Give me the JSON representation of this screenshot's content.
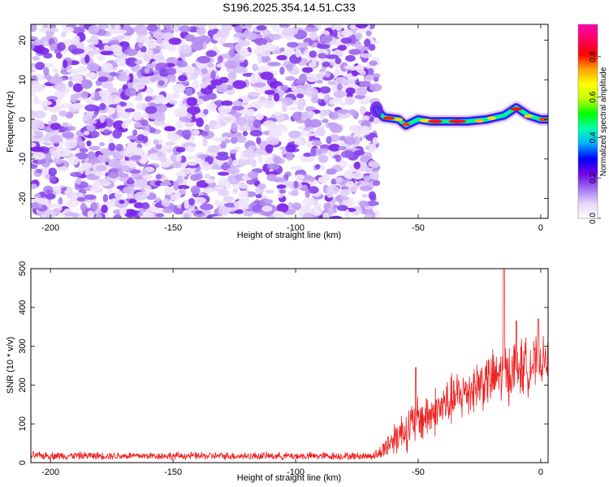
{
  "title": "S196.2025.354.14.51.C33",
  "chart_data": [
    {
      "type": "heatmap",
      "name": "spectrogram",
      "xlabel": "Height of straight line (km)",
      "ylabel": "Frequency (Hz)",
      "xlim": [
        -208,
        3
      ],
      "ylim": [
        -25,
        24
      ],
      "xticks": [
        -200,
        -150,
        -100,
        -50,
        0
      ],
      "yticks": [
        -20,
        -10,
        0,
        10,
        20
      ],
      "noise_region_x": [
        -208,
        -67
      ],
      "signal_start_x": -67,
      "signal_center_hz": 0,
      "signal_trace": [
        {
          "x": -67,
          "hz": 2.5
        },
        {
          "x": -64,
          "hz": 0.5
        },
        {
          "x": -58,
          "hz": 0
        },
        {
          "x": -55,
          "hz": -1.5
        },
        {
          "x": -50,
          "hz": 0
        },
        {
          "x": -45,
          "hz": -0.5
        },
        {
          "x": -30,
          "hz": -0.5
        },
        {
          "x": -22,
          "hz": 0
        },
        {
          "x": -15,
          "hz": 1
        },
        {
          "x": -10,
          "hz": 3
        },
        {
          "x": -5,
          "hz": 1
        },
        {
          "x": 0,
          "hz": 0
        },
        {
          "x": 3,
          "hz": 0
        }
      ],
      "colorbar": {
        "label": "Normalized spectral amplitude",
        "range": [
          0,
          0.96
        ],
        "ticks": [
          0,
          0.2,
          0.4,
          0.6,
          0.8
        ],
        "tick_labels": [
          "0.0",
          "0.2",
          "0.4",
          "0.6",
          "0.8"
        ],
        "colors": [
          "#ffffff",
          "#e6d6fa",
          "#a070f0",
          "#7000e8",
          "#0000ff",
          "#00b0ff",
          "#00ffb0",
          "#00ff00",
          "#c0ff00",
          "#ffff00",
          "#ffa000",
          "#ff0000",
          "#ff0060",
          "#ff00b0"
        ]
      }
    },
    {
      "type": "line",
      "name": "snr",
      "xlabel": "Height of straight line (km)",
      "ylabel": "SNR (10 * v/v)",
      "xlim": [
        -208,
        3
      ],
      "ylim": [
        0,
        500
      ],
      "xticks": [
        -200,
        -150,
        -100,
        -50,
        0
      ],
      "yticks": [
        0,
        100,
        200,
        300,
        400,
        500
      ],
      "color": "#ee2222",
      "envelope_x": [
        -208,
        -100,
        -70,
        -66,
        -62,
        -58,
        -54,
        -50,
        -45,
        -40,
        -35,
        -30,
        -25,
        -20,
        -15,
        -10,
        -5,
        0,
        3
      ],
      "envelope_mean": [
        18,
        17,
        17,
        22,
        50,
        75,
        90,
        110,
        125,
        145,
        165,
        185,
        205,
        215,
        230,
        240,
        250,
        260,
        265
      ],
      "envelope_spread": [
        12,
        12,
        12,
        18,
        45,
        60,
        70,
        75,
        75,
        75,
        80,
        80,
        85,
        85,
        90,
        95,
        85,
        70,
        60
      ],
      "peaks": [
        {
          "x": -51,
          "y": 245
        },
        {
          "x": -15,
          "y": 500
        },
        {
          "x": -10,
          "y": 365
        },
        {
          "x": -1,
          "y": 370
        }
      ]
    }
  ]
}
